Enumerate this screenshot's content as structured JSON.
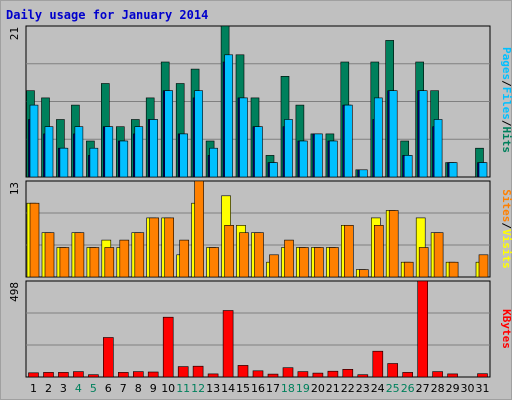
{
  "title": "Daily usage for January 2014",
  "colors": {
    "background": "#c0c0c0",
    "hits": "#00805c",
    "files": "#00c0ff",
    "pages": "#00008b",
    "visits": "#ffff00",
    "sites": "#ff8000",
    "kbytes": "#ff0000",
    "weekend_label": "#00805c",
    "weekday_label": "#000000"
  },
  "chart_data": [
    {
      "type": "bar",
      "panel": "hits-files-pages",
      "ymax_label": "21",
      "ylim": [
        0,
        21
      ],
      "legend": [
        "Pages",
        "/",
        "Files",
        "/",
        "Hits"
      ],
      "legend_placement": "right",
      "categories": [
        "1",
        "2",
        "3",
        "4",
        "5",
        "6",
        "7",
        "8",
        "9",
        "10",
        "11",
        "12",
        "13",
        "14",
        "15",
        "16",
        "17",
        "18",
        "19",
        "20",
        "21",
        "22",
        "23",
        "24",
        "25",
        "26",
        "27",
        "28",
        "29",
        "30",
        "31"
      ],
      "series": [
        {
          "name": "Hits",
          "values": [
            12,
            11,
            8,
            10,
            5,
            13,
            7,
            8,
            11,
            16,
            13,
            15,
            5,
            21,
            17,
            11,
            3,
            14,
            10,
            6,
            6,
            16,
            1,
            16,
            19,
            5,
            16,
            12,
            2,
            0,
            4
          ]
        },
        {
          "name": "Files",
          "values": [
            10,
            7,
            4,
            7,
            4,
            7,
            5,
            7,
            8,
            12,
            6,
            12,
            4,
            17,
            11,
            7,
            2,
            8,
            5,
            6,
            5,
            10,
            1,
            11,
            12,
            3,
            12,
            8,
            2,
            0,
            2
          ]
        },
        {
          "name": "Pages",
          "values": [
            8,
            6,
            4,
            6,
            3,
            7,
            5,
            6,
            8,
            12,
            6,
            11,
            3,
            16,
            11,
            7,
            2,
            7,
            5,
            6,
            5,
            10,
            1,
            8,
            12,
            3,
            12,
            7,
            2,
            0,
            2
          ]
        }
      ]
    },
    {
      "type": "bar",
      "panel": "visits-sites",
      "ymax_label": "13",
      "ylim": [
        0,
        13
      ],
      "legend": [
        "Sites",
        "/",
        "Visits"
      ],
      "legend_placement": "right",
      "categories": [
        "1",
        "2",
        "3",
        "4",
        "5",
        "6",
        "7",
        "8",
        "9",
        "10",
        "11",
        "12",
        "13",
        "14",
        "15",
        "16",
        "17",
        "18",
        "19",
        "20",
        "21",
        "22",
        "23",
        "24",
        "25",
        "26",
        "27",
        "28",
        "29",
        "30",
        "31"
      ],
      "series": [
        {
          "name": "Visits",
          "values": [
            10,
            6,
            4,
            6,
            4,
            5,
            4,
            6,
            8,
            8,
            3,
            10,
            4,
            11,
            7,
            6,
            2,
            4,
            4,
            4,
            4,
            7,
            1,
            8,
            9,
            2,
            8,
            6,
            2,
            0,
            2
          ]
        },
        {
          "name": "Sites",
          "values": [
            10,
            6,
            4,
            6,
            4,
            4,
            5,
            6,
            8,
            8,
            5,
            13,
            4,
            7,
            6,
            6,
            3,
            5,
            4,
            4,
            4,
            7,
            1,
            7,
            9,
            2,
            4,
            6,
            2,
            0,
            3
          ]
        }
      ]
    },
    {
      "type": "bar",
      "panel": "kbytes",
      "ymax_label": "498",
      "ylim": [
        0,
        498
      ],
      "legend": [
        "KBytes"
      ],
      "legend_placement": "right",
      "categories": [
        "1",
        "2",
        "3",
        "4",
        "5",
        "6",
        "7",
        "8",
        "9",
        "10",
        "11",
        "12",
        "13",
        "14",
        "15",
        "16",
        "17",
        "18",
        "19",
        "20",
        "21",
        "22",
        "23",
        "24",
        "25",
        "26",
        "27",
        "28",
        "29",
        "30",
        "31"
      ],
      "series": [
        {
          "name": "KBytes",
          "values": [
            22,
            24,
            24,
            28,
            12,
            205,
            24,
            28,
            26,
            310,
            54,
            56,
            16,
            345,
            60,
            32,
            15,
            48,
            28,
            20,
            30,
            40,
            12,
            134,
            70,
            24,
            498,
            28,
            16,
            0,
            17
          ]
        }
      ]
    }
  ],
  "weekend_days": [
    4,
    5,
    11,
    12,
    18,
    19,
    25,
    26
  ]
}
